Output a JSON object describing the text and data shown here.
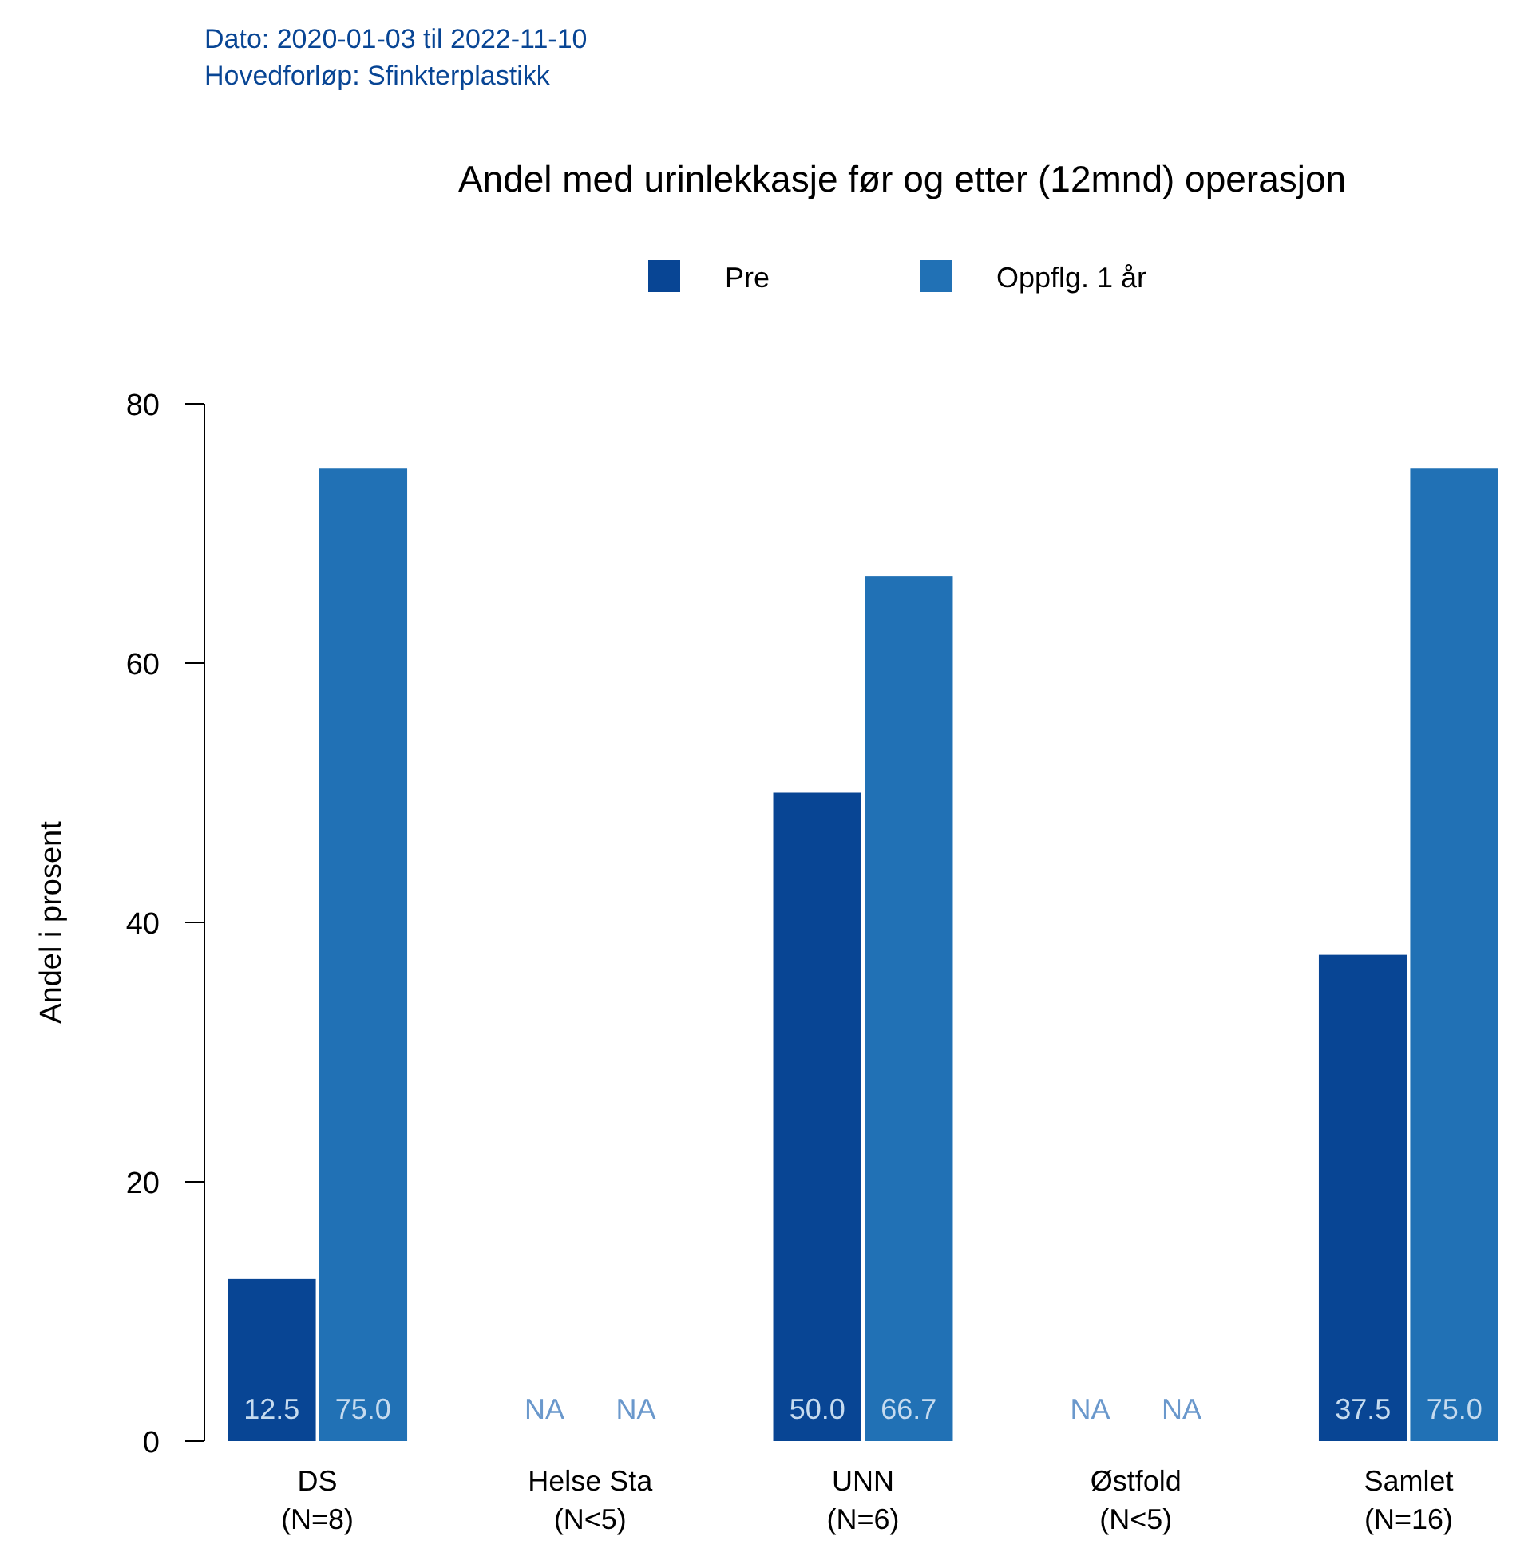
{
  "chart_data": {
    "type": "bar",
    "title": "Andel med urinlekkasje før og etter (12mnd) operasjon",
    "ylabel": "Andel i prosent",
    "annotations": [
      "Dato: 2020-01-03 til 2022-11-10",
      "Hovedforløp: Sfinkterplastikk"
    ],
    "categories": [
      "DS\n(N=8)",
      "Helse Sta\n(N<5)",
      "UNN\n(N=6)",
      "Østfold\n(N<5)",
      "Samlet\n(N=16)"
    ],
    "series": [
      {
        "name": "Pre",
        "color": "#084594",
        "values": [
          12.5,
          null,
          50.0,
          null,
          37.5
        ],
        "value_labels": [
          "12.5",
          "NA",
          "50.0",
          "NA",
          "37.5"
        ]
      },
      {
        "name": "Oppflg. 1 år",
        "color": "#2171b5",
        "values": [
          75.0,
          null,
          66.7,
          null,
          75.0
        ],
        "value_labels": [
          "75.0",
          "NA",
          "66.7",
          "NA",
          "75.0"
        ]
      }
    ],
    "ylim": [
      0,
      80
    ],
    "yticks": [
      0,
      20,
      40,
      60,
      80
    ],
    "grid": false,
    "legend": "top"
  }
}
